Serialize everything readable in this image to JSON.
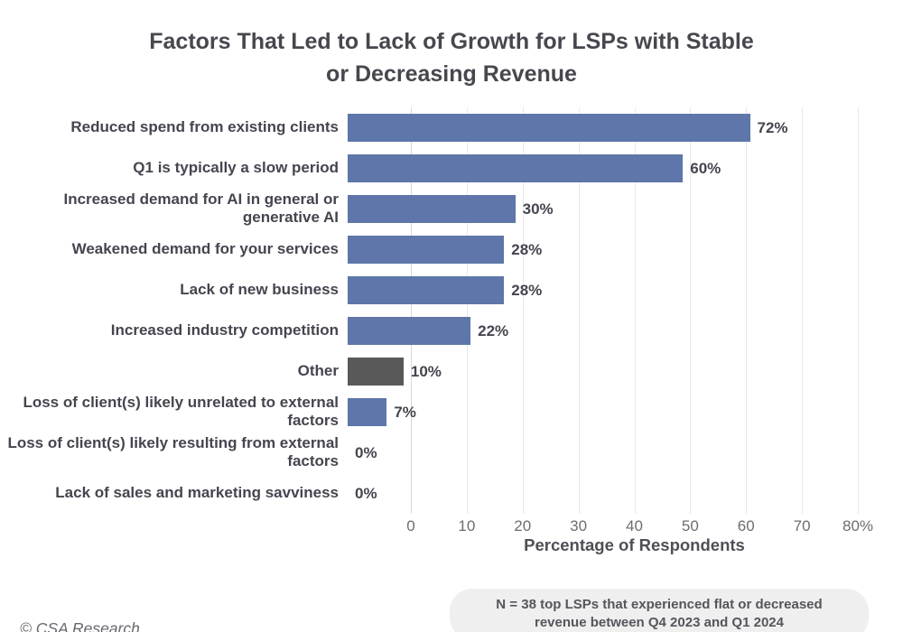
{
  "title_line1": "Factors That Led to Lack of Growth for LSPs with Stable",
  "title_line2": "or Decreasing Revenue",
  "chart_data": {
    "type": "bar",
    "orientation": "horizontal",
    "title": "Factors That Led to Lack of Growth for LSPs with Stable or Decreasing Revenue",
    "xlabel": "Percentage of Respondents",
    "xlim": [
      0,
      80
    ],
    "grid": true,
    "tick_labels": [
      "0",
      "10",
      "20",
      "30",
      "40",
      "50",
      "60",
      "70",
      "80%"
    ],
    "bar_color_default": "#5e76a9",
    "bar_color_other": "#595959",
    "bars": [
      {
        "label": "Reduced spend from existing clients",
        "value": 72,
        "display": "72%",
        "color": "#5e76a9"
      },
      {
        "label": "Q1 is typically a slow period",
        "value": 60,
        "display": "60%",
        "color": "#5e76a9"
      },
      {
        "label": "Increased demand for AI in general or generative AI",
        "value": 30,
        "display": "30%",
        "color": "#5e76a9"
      },
      {
        "label": "Weakened demand for your services",
        "value": 28,
        "display": "28%",
        "color": "#5e76a9"
      },
      {
        "label": "Lack of new business",
        "value": 28,
        "display": "28%",
        "color": "#5e76a9"
      },
      {
        "label": "Increased industry competition",
        "value": 22,
        "display": "22%",
        "color": "#5e76a9"
      },
      {
        "label": "Other",
        "value": 10,
        "display": "10%",
        "color": "#595959"
      },
      {
        "label": "Loss of client(s) likely unrelated to external factors",
        "value": 7,
        "display": "7%",
        "color": "#5e76a9"
      },
      {
        "label": "Loss of client(s) likely resulting from external factors",
        "value": 0,
        "display": "0%",
        "color": "#5e76a9"
      },
      {
        "label": "Lack of sales and marketing savviness",
        "value": 0,
        "display": "0%",
        "color": "#5e76a9"
      }
    ]
  },
  "note": "N = 38 top LSPs that experienced flat or decreased revenue between Q4 2023 and Q1 2024",
  "footer": "© CSA Research"
}
